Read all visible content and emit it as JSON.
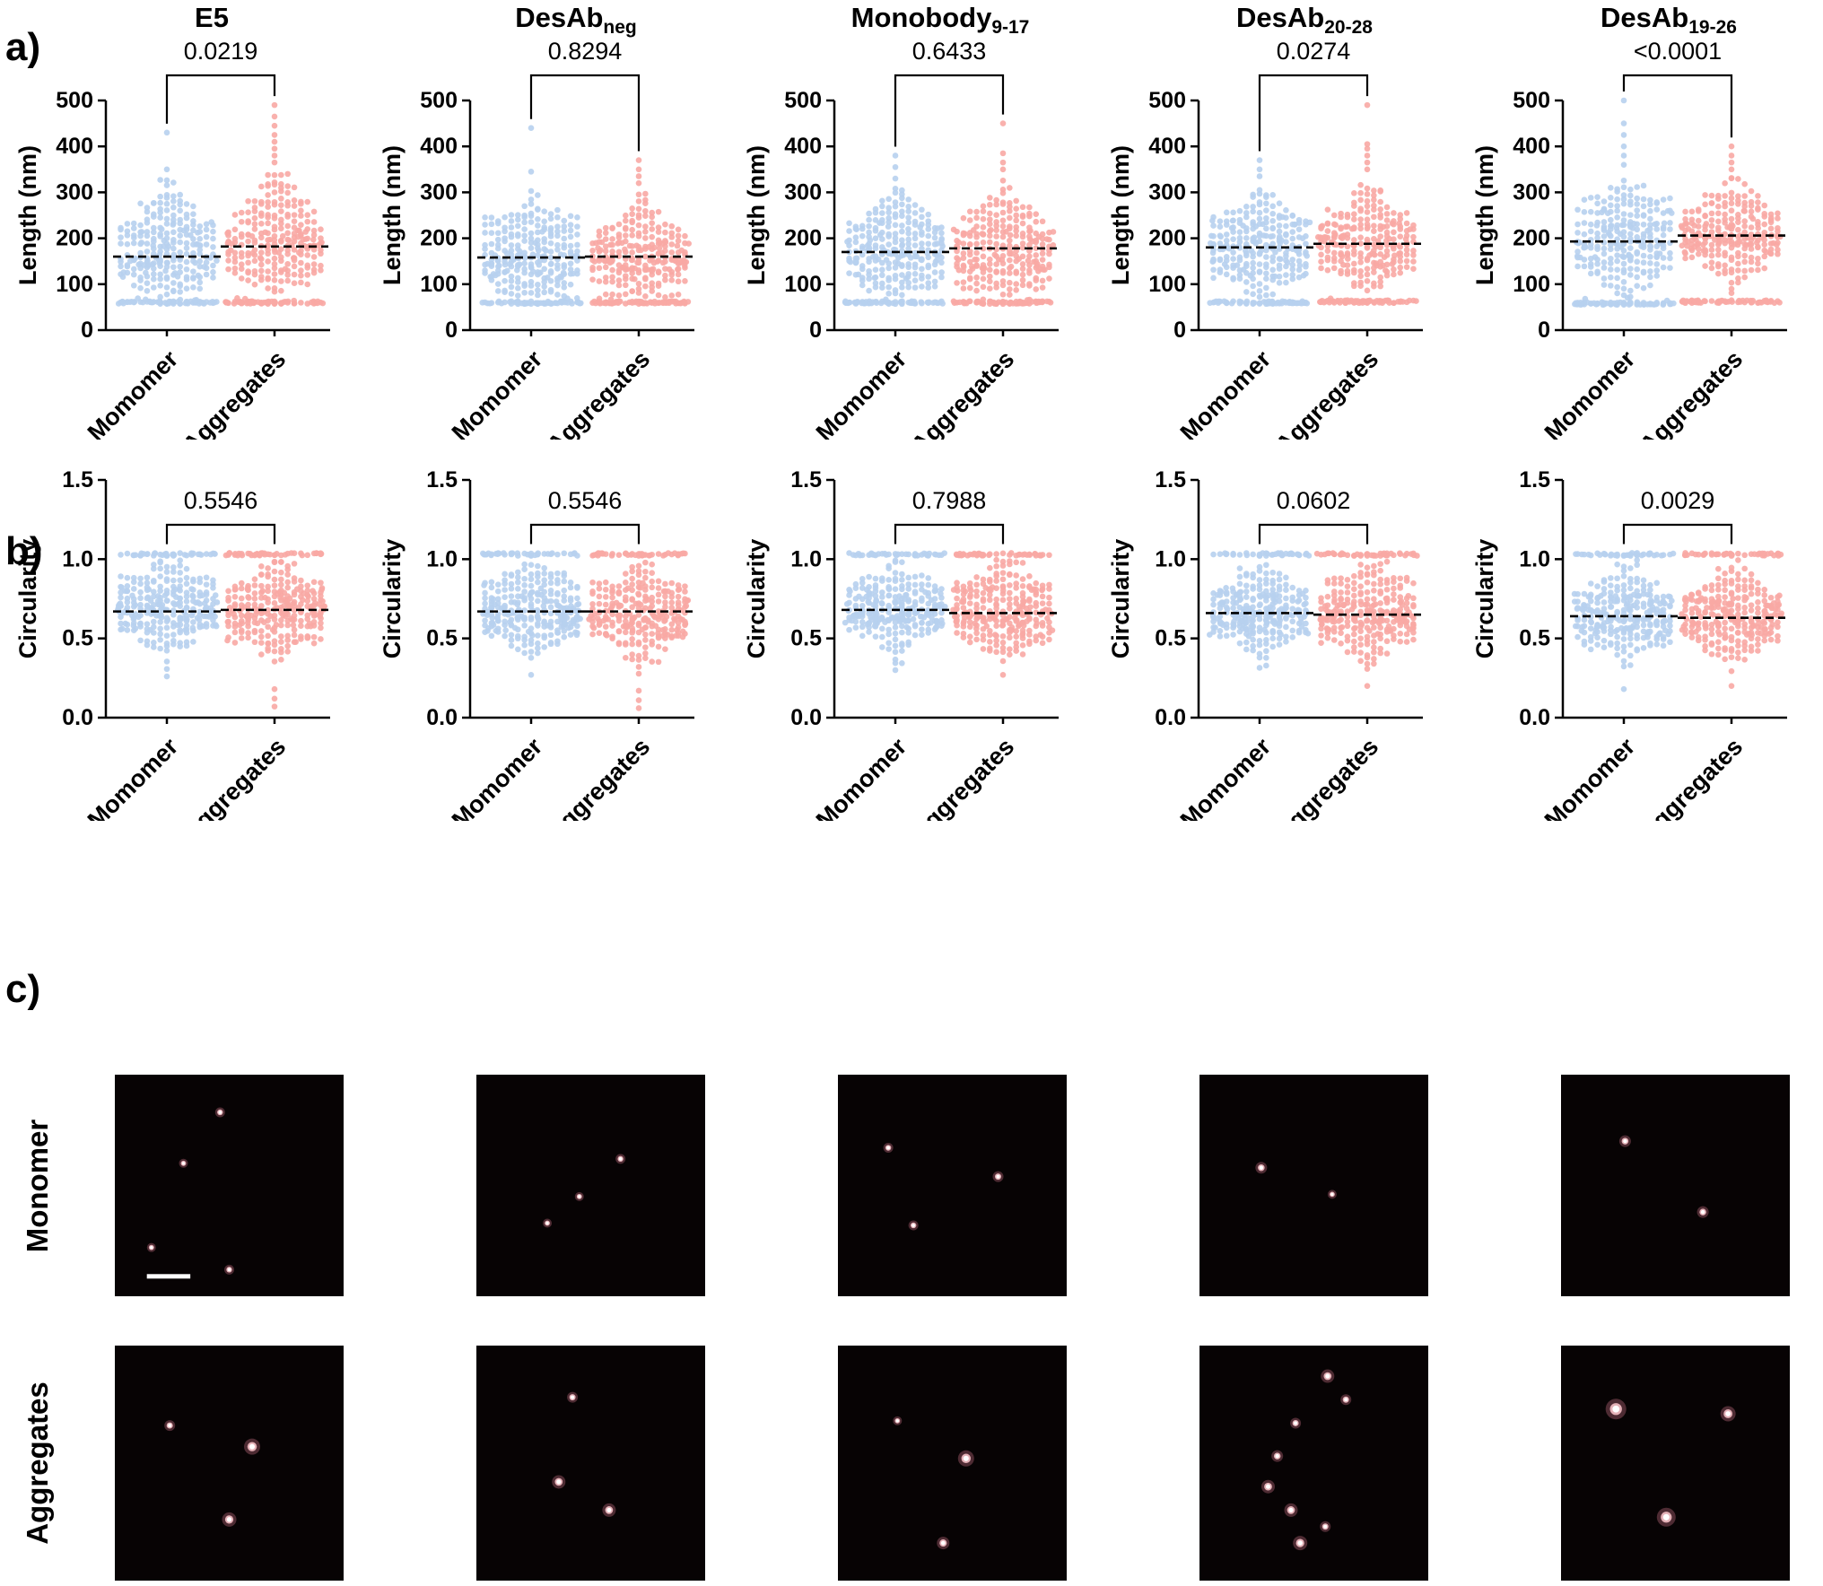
{
  "panels": {
    "a_label": "a)",
    "b_label": "b)",
    "c_label": "c)"
  },
  "columns": [
    {
      "name": "E5",
      "sub": ""
    },
    {
      "name": "DesAb",
      "sub": "neg"
    },
    {
      "name": "Monobody",
      "sub": "9-17"
    },
    {
      "name": "DesAb",
      "sub": "20-28"
    },
    {
      "name": "DesAb",
      "sub": "19-26"
    }
  ],
  "categories": [
    "Momomer",
    "Aggregates"
  ],
  "colors": {
    "monomer_points": "#b7d0ee",
    "aggregate_points": "#f8a8a4",
    "axis": "#000000",
    "median_line": "#000000",
    "micrograph_bg": "#070304",
    "dot_core": "#ffffff",
    "dot_mid": "#ffc9cf",
    "dot_glow": "#d4788c"
  },
  "chart_data": [
    {
      "id": "a-e5",
      "panel": "a",
      "column": "E5",
      "type": "scatter",
      "ylabel": "Length (nm)",
      "ylim": [
        0,
        500
      ],
      "yticks": [
        0,
        100,
        200,
        300,
        400,
        500
      ],
      "ytick_labels": [
        "0",
        "100",
        "200",
        "300",
        "400",
        "500"
      ],
      "p_value": "0.0219",
      "categories": [
        "Momomer",
        "Aggregates"
      ],
      "series": [
        {
          "name": "Momomer",
          "n": 300,
          "median": 160,
          "spread": 55,
          "cloud_min": 57,
          "cloud_max": 330,
          "baseline": 60,
          "baseline_frac": 0.2,
          "outliers": [
            350,
            430
          ],
          "color_key": "monomer_points"
        },
        {
          "name": "Aggregates",
          "n": 300,
          "median": 182,
          "spread": 58,
          "cloud_min": 57,
          "cloud_max": 345,
          "baseline": 60,
          "baseline_frac": 0.2,
          "outliers": [
            365,
            380,
            395,
            410,
            425,
            445,
            465,
            490
          ],
          "color_key": "aggregate_points"
        }
      ]
    },
    {
      "id": "a-desab-neg",
      "panel": "a",
      "column": "DesAb neg",
      "type": "scatter",
      "ylabel": "Length (nm)",
      "ylim": [
        0,
        500
      ],
      "yticks": [
        0,
        100,
        200,
        300,
        400,
        500
      ],
      "ytick_labels": [
        "0",
        "100",
        "200",
        "300",
        "400",
        "500"
      ],
      "p_value": "0.8294",
      "categories": [
        "Momomer",
        "Aggregates"
      ],
      "series": [
        {
          "name": "Momomer",
          "n": 300,
          "median": 158,
          "spread": 54,
          "cloud_min": 57,
          "cloud_max": 320,
          "baseline": 60,
          "baseline_frac": 0.2,
          "outliers": [
            345,
            440
          ],
          "color_key": "monomer_points"
        },
        {
          "name": "Aggregates",
          "n": 300,
          "median": 160,
          "spread": 52,
          "cloud_min": 57,
          "cloud_max": 305,
          "baseline": 60,
          "baseline_frac": 0.22,
          "outliers": [
            320,
            335,
            350,
            370
          ],
          "color_key": "aggregate_points"
        }
      ]
    },
    {
      "id": "a-monobody",
      "panel": "a",
      "column": "Monobody 9-17",
      "type": "scatter",
      "ylabel": "Length (nm)",
      "ylim": [
        0,
        500
      ],
      "yticks": [
        0,
        100,
        200,
        300,
        400,
        500
      ],
      "ytick_labels": [
        "0",
        "100",
        "200",
        "300",
        "400",
        "500"
      ],
      "p_value": "0.6433",
      "categories": [
        "Momomer",
        "Aggregates"
      ],
      "series": [
        {
          "name": "Momomer",
          "n": 300,
          "median": 170,
          "spread": 52,
          "cloud_min": 57,
          "cloud_max": 310,
          "baseline": 60,
          "baseline_frac": 0.2,
          "outliers": [
            330,
            355,
            380
          ],
          "color_key": "monomer_points"
        },
        {
          "name": "Aggregates",
          "n": 300,
          "median": 178,
          "spread": 54,
          "cloud_min": 57,
          "cloud_max": 330,
          "baseline": 60,
          "baseline_frac": 0.2,
          "outliers": [
            350,
            365,
            385,
            450
          ],
          "color_key": "aggregate_points"
        }
      ]
    },
    {
      "id": "a-desab-20-28",
      "panel": "a",
      "column": "DesAb 20-28",
      "type": "scatter",
      "ylabel": "Length (nm)",
      "ylim": [
        0,
        500
      ],
      "yticks": [
        0,
        100,
        200,
        300,
        400,
        500
      ],
      "ytick_labels": [
        "0",
        "100",
        "200",
        "300",
        "400",
        "500"
      ],
      "p_value": "0.0274",
      "categories": [
        "Momomer",
        "Aggregates"
      ],
      "series": [
        {
          "name": "Momomer",
          "n": 300,
          "median": 180,
          "spread": 52,
          "cloud_min": 57,
          "cloud_max": 315,
          "baseline": 60,
          "baseline_frac": 0.2,
          "outliers": [
            335,
            350,
            370
          ],
          "color_key": "monomer_points"
        },
        {
          "name": "Aggregates",
          "n": 300,
          "median": 188,
          "spread": 55,
          "cloud_min": 57,
          "cloud_max": 330,
          "baseline": 62,
          "baseline_frac": 0.22,
          "outliers": [
            350,
            365,
            380,
            395,
            405,
            490
          ],
          "color_key": "aggregate_points"
        }
      ]
    },
    {
      "id": "a-desab-19-26",
      "panel": "a",
      "column": "DesAb 19-26",
      "type": "scatter",
      "ylabel": "Length (nm)",
      "ylim": [
        0,
        500
      ],
      "yticks": [
        0,
        100,
        200,
        300,
        400,
        500
      ],
      "ytick_labels": [
        "0",
        "100",
        "200",
        "300",
        "400",
        "500"
      ],
      "p_value": "<0.0001",
      "categories": [
        "Momomer",
        "Aggregates"
      ],
      "series": [
        {
          "name": "Momomer",
          "n": 300,
          "median": 193,
          "spread": 56,
          "cloud_min": 57,
          "cloud_max": 340,
          "baseline": 58,
          "baseline_frac": 0.2,
          "outliers": [
            360,
            380,
            400,
            425,
            450,
            500
          ],
          "color_key": "monomer_points"
        },
        {
          "name": "Aggregates",
          "n": 300,
          "median": 206,
          "spread": 52,
          "cloud_min": 57,
          "cloud_max": 335,
          "baseline": 62,
          "baseline_frac": 0.2,
          "outliers": [
            350,
            365,
            380,
            400
          ],
          "color_key": "aggregate_points"
        }
      ]
    },
    {
      "id": "b-e5",
      "panel": "b",
      "column": "E5",
      "type": "scatter",
      "ylabel": "Circularity",
      "ylim": [
        0,
        1.5
      ],
      "yticks": [
        0,
        0.5,
        1,
        1.5
      ],
      "ytick_labels": [
        "0.0",
        "0.5",
        "1.0",
        "1.5"
      ],
      "p_value": "0.5546",
      "categories": [
        "Momomer",
        "Aggregates"
      ],
      "series": [
        {
          "name": "Momomer",
          "n": 300,
          "median": 0.67,
          "spread": 0.12,
          "cloud_min": 0.3,
          "cloud_max": 1.0,
          "baseline": 1.03,
          "baseline_frac": 0.13,
          "outliers": [
            0.26
          ],
          "color_key": "monomer_points"
        },
        {
          "name": "Aggregates",
          "n": 300,
          "median": 0.68,
          "spread": 0.13,
          "cloud_min": 0.24,
          "cloud_max": 1.0,
          "baseline": 1.03,
          "baseline_frac": 0.15,
          "outliers": [
            0.07,
            0.12,
            0.18
          ],
          "color_key": "aggregate_points"
        }
      ]
    },
    {
      "id": "b-desab-neg",
      "panel": "b",
      "column": "DesAb neg",
      "type": "scatter",
      "ylabel": "Circularity",
      "ylim": [
        0,
        1.5
      ],
      "yticks": [
        0,
        0.5,
        1,
        1.5
      ],
      "ytick_labels": [
        "0.0",
        "0.5",
        "1.0",
        "1.5"
      ],
      "p_value": "0.5546",
      "categories": [
        "Momomer",
        "Aggregates"
      ],
      "series": [
        {
          "name": "Momomer",
          "n": 300,
          "median": 0.67,
          "spread": 0.12,
          "cloud_min": 0.3,
          "cloud_max": 1.0,
          "baseline": 1.03,
          "baseline_frac": 0.13,
          "outliers": [
            0.27
          ],
          "color_key": "monomer_points"
        },
        {
          "name": "Aggregates",
          "n": 300,
          "median": 0.67,
          "spread": 0.13,
          "cloud_min": 0.24,
          "cloud_max": 1.0,
          "baseline": 1.03,
          "baseline_frac": 0.15,
          "outliers": [
            0.06,
            0.11,
            0.17
          ],
          "color_key": "aggregate_points"
        }
      ]
    },
    {
      "id": "b-monobody",
      "panel": "b",
      "column": "Monobody 9-17",
      "type": "scatter",
      "ylabel": "Circularity",
      "ylim": [
        0,
        1.5
      ],
      "yticks": [
        0,
        0.5,
        1,
        1.5
      ],
      "ytick_labels": [
        "0.0",
        "0.5",
        "1.0",
        "1.5"
      ],
      "p_value": "0.7988",
      "categories": [
        "Momomer",
        "Aggregates"
      ],
      "series": [
        {
          "name": "Momomer",
          "n": 300,
          "median": 0.68,
          "spread": 0.11,
          "cloud_min": 0.33,
          "cloud_max": 1.0,
          "baseline": 1.03,
          "baseline_frac": 0.13,
          "outliers": [
            0.3
          ],
          "color_key": "monomer_points"
        },
        {
          "name": "Aggregates",
          "n": 300,
          "median": 0.66,
          "spread": 0.12,
          "cloud_min": 0.28,
          "cloud_max": 1.0,
          "baseline": 1.03,
          "baseline_frac": 0.14,
          "outliers": [
            0.27
          ],
          "color_key": "aggregate_points"
        }
      ]
    },
    {
      "id": "b-desab-20-28",
      "panel": "b",
      "column": "DesAb 20-28",
      "type": "scatter",
      "ylabel": "Circularity",
      "ylim": [
        0,
        1.5
      ],
      "yticks": [
        0,
        0.5,
        1,
        1.5
      ],
      "ytick_labels": [
        "0.0",
        "0.5",
        "1.0",
        "1.5"
      ],
      "p_value": "0.0602",
      "categories": [
        "Momomer",
        "Aggregates"
      ],
      "series": [
        {
          "name": "Momomer",
          "n": 300,
          "median": 0.66,
          "spread": 0.11,
          "cloud_min": 0.31,
          "cloud_max": 1.0,
          "baseline": 1.03,
          "baseline_frac": 0.13,
          "outliers": [],
          "color_key": "monomer_points"
        },
        {
          "name": "Aggregates",
          "n": 300,
          "median": 0.65,
          "spread": 0.13,
          "cloud_min": 0.22,
          "cloud_max": 1.0,
          "baseline": 1.03,
          "baseline_frac": 0.14,
          "outliers": [
            0.2
          ],
          "color_key": "aggregate_points"
        }
      ]
    },
    {
      "id": "b-desab-19-26",
      "panel": "b",
      "column": "DesAb 19-26",
      "type": "scatter",
      "ylabel": "Circularity",
      "ylim": [
        0,
        1.5
      ],
      "yticks": [
        0,
        0.5,
        1,
        1.5
      ],
      "ytick_labels": [
        "0.0",
        "0.5",
        "1.0",
        "1.5"
      ],
      "p_value": "0.0029",
      "categories": [
        "Momomer",
        "Aggregates"
      ],
      "series": [
        {
          "name": "Momomer",
          "n": 300,
          "median": 0.64,
          "spread": 0.12,
          "cloud_min": 0.28,
          "cloud_max": 1.0,
          "baseline": 1.03,
          "baseline_frac": 0.13,
          "outliers": [
            0.18
          ],
          "color_key": "monomer_points"
        },
        {
          "name": "Aggregates",
          "n": 300,
          "median": 0.63,
          "spread": 0.13,
          "cloud_min": 0.21,
          "cloud_max": 1.0,
          "baseline": 1.03,
          "baseline_frac": 0.14,
          "outliers": [
            0.2
          ],
          "color_key": "aggregate_points"
        }
      ]
    }
  ],
  "panel_c": {
    "rows": [
      {
        "label": "Monomer",
        "images": [
          {
            "dots": [
              [
                0.46,
                0.17,
                2.2
              ],
              [
                0.3,
                0.4,
                2.0
              ],
              [
                0.16,
                0.78,
                2.0
              ],
              [
                0.5,
                0.88,
                2.2
              ]
            ],
            "scale_bar": [
              0.14,
              0.9,
              0.19
            ]
          },
          {
            "dots": [
              [
                0.63,
                0.38,
                2.2
              ],
              [
                0.45,
                0.55,
                2.0
              ],
              [
                0.31,
                0.67,
                2.0
              ]
            ]
          },
          {
            "dots": [
              [
                0.22,
                0.33,
                2.2
              ],
              [
                0.7,
                0.46,
                2.4
              ],
              [
                0.33,
                0.68,
                2.2
              ]
            ]
          },
          {
            "dots": [
              [
                0.27,
                0.42,
                2.6
              ],
              [
                0.58,
                0.54,
                2.0
              ]
            ]
          },
          {
            "dots": [
              [
                0.28,
                0.3,
                2.6
              ],
              [
                0.62,
                0.62,
                2.6
              ]
            ]
          }
        ]
      },
      {
        "label": "Aggregates",
        "images": [
          {
            "dots": [
              [
                0.24,
                0.34,
                2.4
              ],
              [
                0.6,
                0.43,
                3.6
              ],
              [
                0.5,
                0.74,
                3.2
              ]
            ]
          },
          {
            "dots": [
              [
                0.42,
                0.22,
                2.4
              ],
              [
                0.36,
                0.58,
                3.0
              ],
              [
                0.58,
                0.7,
                3.0
              ]
            ]
          },
          {
            "dots": [
              [
                0.26,
                0.32,
                2.0
              ],
              [
                0.56,
                0.48,
                3.6
              ],
              [
                0.46,
                0.84,
                2.8
              ]
            ]
          },
          {
            "dots": [
              [
                0.56,
                0.13,
                3.0
              ],
              [
                0.64,
                0.23,
                2.4
              ],
              [
                0.42,
                0.33,
                2.4
              ],
              [
                0.34,
                0.47,
                2.6
              ],
              [
                0.3,
                0.6,
                3.0
              ],
              [
                0.4,
                0.7,
                3.0
              ],
              [
                0.44,
                0.84,
                3.2
              ],
              [
                0.55,
                0.77,
                2.4
              ]
            ]
          },
          {
            "dots": [
              [
                0.24,
                0.27,
                4.6
              ],
              [
                0.73,
                0.29,
                3.4
              ],
              [
                0.46,
                0.73,
                4.2
              ]
            ]
          }
        ]
      }
    ]
  }
}
